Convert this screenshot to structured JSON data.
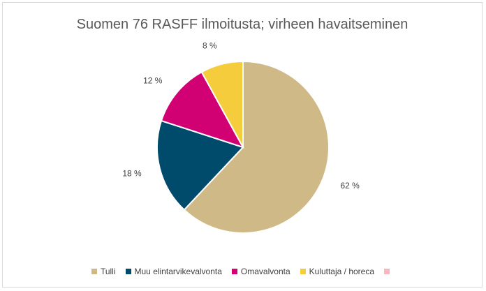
{
  "chart_data": {
    "type": "pie",
    "title": "Suomen 76 RASFF ilmoitusta; virheen havaitseminen",
    "categories": [
      "Tulli",
      "Muu elintarvikevalvonta",
      "Omavalvonta",
      "Kuluttaja / horeca",
      ""
    ],
    "values": [
      62,
      18,
      12,
      8,
      0
    ],
    "data_labels": [
      "62 %",
      "18 %",
      "12 %",
      "8 %",
      ""
    ],
    "colors": [
      "#cfb987",
      "#004a6b",
      "#d10073",
      "#f5cd3c",
      "#f4b6c0"
    ],
    "legend_position": "bottom"
  }
}
